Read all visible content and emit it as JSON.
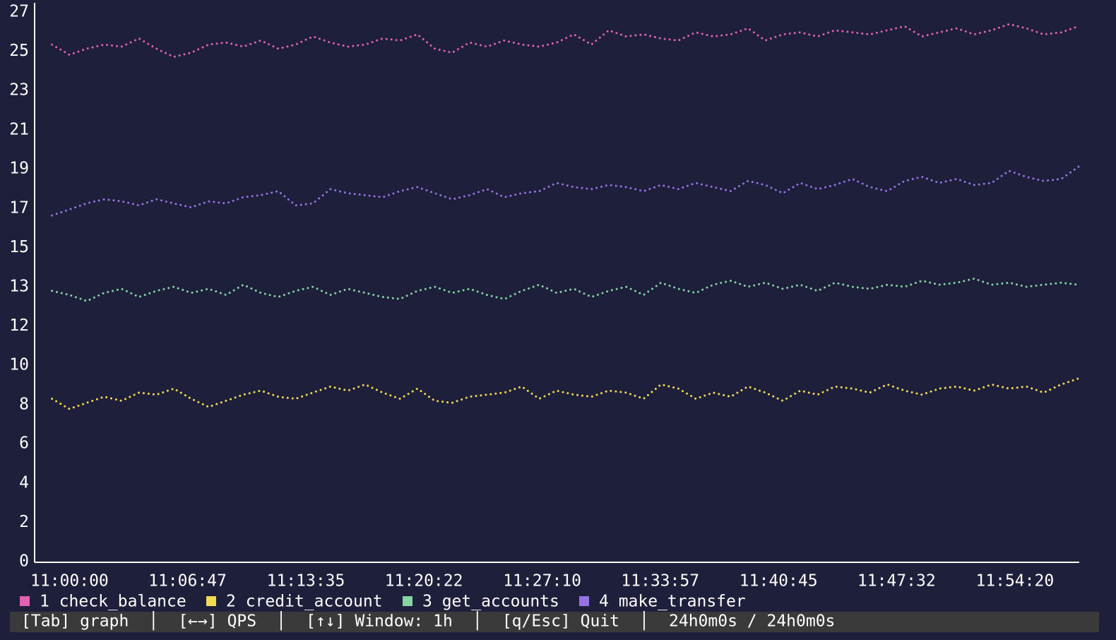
{
  "chart_data": {
    "type": "line",
    "x": [
      "11:01:00",
      "11:02:00",
      "11:03:00",
      "11:04:00",
      "11:05:00",
      "11:06:00",
      "11:07:00",
      "11:08:00",
      "11:09:00",
      "11:10:00",
      "11:11:00",
      "11:12:00",
      "11:13:00",
      "11:14:00",
      "11:15:00",
      "11:16:00",
      "11:17:00",
      "11:18:00",
      "11:19:00",
      "11:20:00",
      "11:21:00",
      "11:22:00",
      "11:23:00",
      "11:24:00",
      "11:25:00",
      "11:26:00",
      "11:27:00",
      "11:28:00",
      "11:29:00",
      "11:30:00",
      "11:31:00",
      "11:32:00",
      "11:33:00",
      "11:34:00",
      "11:35:00",
      "11:36:00",
      "11:37:00",
      "11:38:00",
      "11:39:00",
      "11:40:00",
      "11:41:00",
      "11:42:00",
      "11:43:00",
      "11:44:00",
      "11:45:00",
      "11:46:00",
      "11:47:00",
      "11:48:00",
      "11:49:00",
      "11:50:00",
      "11:51:00",
      "11:52:00",
      "11:53:00",
      "11:54:00",
      "11:55:00",
      "11:56:00",
      "11:57:00",
      "11:58:00",
      "11:59:00",
      "12:00:00"
    ],
    "series": [
      {
        "name": "1 check_balance",
        "color": "#e062b2",
        "values": [
          25.4,
          24.9,
          25.2,
          25.4,
          25.3,
          25.7,
          25.2,
          24.8,
          25.0,
          25.4,
          25.5,
          25.3,
          25.6,
          25.2,
          25.4,
          25.8,
          25.5,
          25.3,
          25.4,
          25.7,
          25.6,
          25.9,
          25.2,
          25.0,
          25.5,
          25.3,
          25.6,
          25.4,
          25.3,
          25.5,
          25.9,
          25.4,
          26.1,
          25.8,
          25.9,
          25.7,
          25.6,
          26.0,
          25.8,
          25.9,
          26.2,
          25.6,
          25.9,
          26.0,
          25.8,
          26.1,
          26.0,
          25.9,
          26.1,
          26.3,
          25.8,
          26.0,
          26.2,
          25.9,
          26.1,
          26.4,
          26.2,
          25.9,
          26.0,
          26.3
        ]
      },
      {
        "name": "2 credit_account",
        "color": "#f2da52",
        "values": [
          8.0,
          7.5,
          7.8,
          8.1,
          7.9,
          8.3,
          8.2,
          8.5,
          8.0,
          7.6,
          7.9,
          8.2,
          8.4,
          8.1,
          8.0,
          8.3,
          8.6,
          8.4,
          8.7,
          8.3,
          8.0,
          8.5,
          7.9,
          7.8,
          8.1,
          8.2,
          8.3,
          8.6,
          8.0,
          8.4,
          8.2,
          8.1,
          8.4,
          8.3,
          8.0,
          8.7,
          8.5,
          8.0,
          8.3,
          8.1,
          8.6,
          8.3,
          7.9,
          8.4,
          8.2,
          8.6,
          8.5,
          8.3,
          8.7,
          8.4,
          8.2,
          8.5,
          8.6,
          8.4,
          8.7,
          8.5,
          8.6,
          8.3,
          8.7,
          9.0
        ]
      },
      {
        "name": "3 get_accounts",
        "color": "#86d4a4",
        "values": [
          13.3,
          13.1,
          12.8,
          13.2,
          13.4,
          13.0,
          13.3,
          13.5,
          13.2,
          13.4,
          13.1,
          13.6,
          13.2,
          13.0,
          13.3,
          13.5,
          13.1,
          13.4,
          13.2,
          13.0,
          12.9,
          13.3,
          13.5,
          13.2,
          13.4,
          13.1,
          12.9,
          13.3,
          13.6,
          13.2,
          13.4,
          13.0,
          13.3,
          13.5,
          13.1,
          13.7,
          13.4,
          13.2,
          13.6,
          13.8,
          13.5,
          13.7,
          13.4,
          13.6,
          13.3,
          13.7,
          13.5,
          13.4,
          13.6,
          13.5,
          13.8,
          13.6,
          13.7,
          13.9,
          13.6,
          13.7,
          13.5,
          13.6,
          13.7,
          13.6
        ]
      },
      {
        "name": "4 make_transfer",
        "color": "#9672e4",
        "values": [
          17.0,
          17.3,
          17.6,
          17.8,
          17.7,
          17.5,
          17.8,
          17.6,
          17.4,
          17.7,
          17.6,
          17.9,
          18.0,
          18.2,
          17.5,
          17.6,
          18.3,
          18.1,
          18.0,
          17.9,
          18.2,
          18.4,
          18.1,
          17.8,
          18.0,
          18.3,
          17.9,
          18.1,
          18.2,
          18.6,
          18.4,
          18.3,
          18.5,
          18.4,
          18.2,
          18.5,
          18.3,
          18.6,
          18.4,
          18.2,
          18.7,
          18.5,
          18.1,
          18.6,
          18.3,
          18.5,
          18.8,
          18.4,
          18.2,
          18.7,
          18.9,
          18.6,
          18.8,
          18.5,
          18.6,
          19.2,
          18.9,
          18.7,
          18.8,
          19.4
        ]
      }
    ],
    "xlim": [
      "11:00:00",
      "12:00:00"
    ],
    "xticks": [
      "11:00:00",
      "11:06:47",
      "11:13:35",
      "11:20:22",
      "11:27:10",
      "11:33:57",
      "11:40:45",
      "11:47:32",
      "11:54:20"
    ],
    "ylim": [
      0,
      27
    ],
    "yticks": [
      {
        "value": 0,
        "label": "0"
      },
      {
        "value": 1.93,
        "label": "2"
      },
      {
        "value": 3.86,
        "label": "4"
      },
      {
        "value": 5.79,
        "label": "6"
      },
      {
        "value": 7.71,
        "label": "8"
      },
      {
        "value": 9.64,
        "label": "10"
      },
      {
        "value": 11.57,
        "label": "12"
      },
      {
        "value": 13.5,
        "label": "13"
      },
      {
        "value": 15.43,
        "label": "15"
      },
      {
        "value": 17.36,
        "label": "17"
      },
      {
        "value": 19.29,
        "label": "19"
      },
      {
        "value": 21.21,
        "label": "21"
      },
      {
        "value": 23.14,
        "label": "23"
      },
      {
        "value": 25.07,
        "label": "25"
      },
      {
        "value": 27,
        "label": "27"
      }
    ]
  },
  "status_bar": [
    "[Tab] graph",
    "[←→] QPS",
    "[↑↓] Window: 1h",
    "[q/Esc] Quit",
    "24h0m0s / 24h0m0s"
  ]
}
